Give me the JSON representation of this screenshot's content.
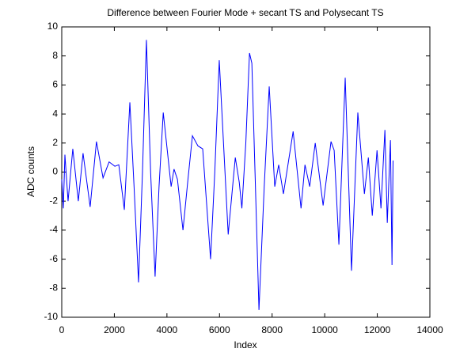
{
  "chart_data": {
    "type": "line",
    "title": "Difference between Fourier Mode + secant TS and Polysecant TS",
    "xlabel": "Index",
    "ylabel": "ADC counts",
    "x": [
      0,
      60,
      120,
      240,
      420,
      630,
      810,
      1080,
      1320,
      1570,
      1800,
      2020,
      2170,
      2380,
      2590,
      2750,
      2920,
      3070,
      3220,
      3380,
      3550,
      3700,
      3860,
      4160,
      4270,
      4400,
      4610,
      4800,
      4970,
      5180,
      5360,
      5660,
      5820,
      5990,
      6330,
      6600,
      6750,
      6850,
      7000,
      7140,
      7230,
      7350,
      7500,
      7700,
      7890,
      8100,
      8250,
      8430,
      8800,
      9100,
      9250,
      9430,
      9640,
      9940,
      10240,
      10360,
      10540,
      10780,
      11020,
      11260,
      11510,
      11660,
      11810,
      11990,
      12140,
      12290,
      12380,
      12500,
      12560,
      12600
    ],
    "values": [
      -0.5,
      -2.5,
      1.2,
      -2,
      1.6,
      -2,
      1.3,
      -2.4,
      2.1,
      -0.4,
      0.7,
      0.4,
      0.5,
      -2.6,
      4.8,
      -1,
      -7.6,
      0,
      9.1,
      0,
      -7.2,
      -1,
      4.1,
      -1,
      0.2,
      -0.5,
      -4,
      -0.5,
      2.5,
      1.8,
      1.6,
      -6,
      0,
      7.7,
      -4.3,
      1,
      -0.7,
      -2.5,
      2,
      8.2,
      7.5,
      0,
      -9.5,
      -1,
      5.9,
      -1,
      0.5,
      -1.5,
      2.8,
      -2.5,
      0.5,
      -1,
      2,
      -2.3,
      2.1,
      1.5,
      -5,
      6.5,
      -6.8,
      4.1,
      -1.5,
      1,
      -3,
      1.5,
      -2.5,
      2.9,
      -3.5,
      2.2,
      -6.4,
      0.8
    ],
    "color": "#0000ff",
    "xlim": [
      0,
      14000
    ],
    "xticks": [
      0,
      2000,
      4000,
      6000,
      8000,
      10000,
      12000,
      14000
    ],
    "ylim": [
      -10,
      10
    ],
    "yticks": [
      -10,
      -8,
      -6,
      -4,
      -2,
      0,
      2,
      4,
      6,
      8,
      10
    ],
    "grid": false
  }
}
